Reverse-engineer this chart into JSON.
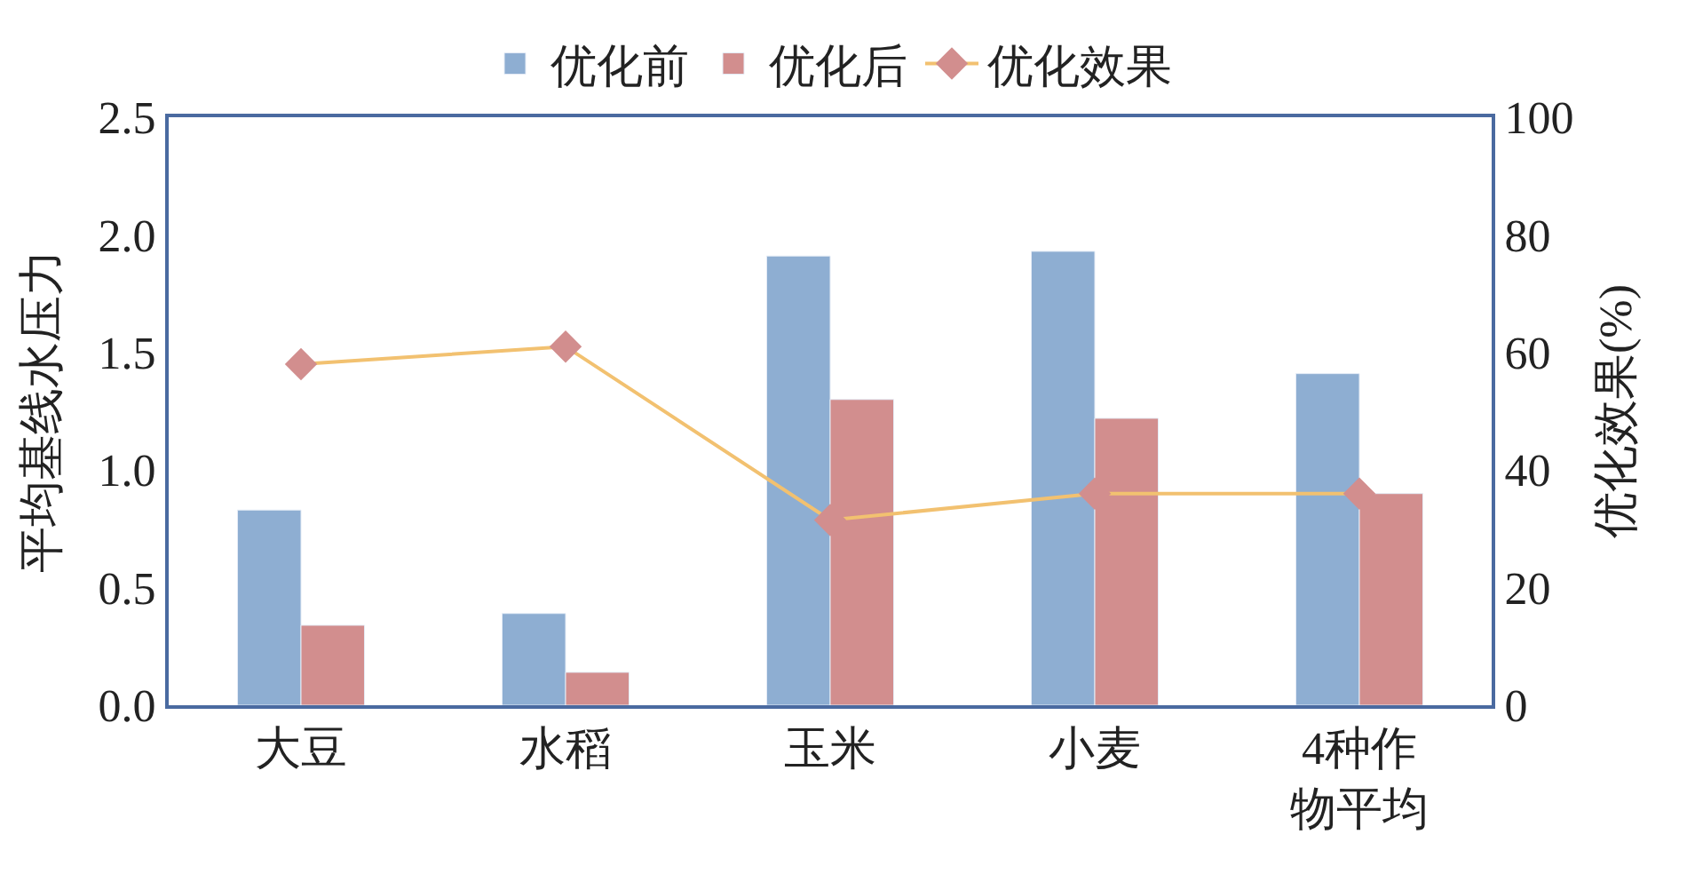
{
  "chart_data": {
    "type": "bar",
    "categories": [
      "大豆",
      "水稻",
      "玉米",
      "小麦",
      "4种作物平均"
    ],
    "ylabel": "平均基线水压力",
    "y2label": "优化效果(%)",
    "ylim": [
      0,
      2.5
    ],
    "yticks": [
      {
        "value": 0,
        "label": "0.0"
      },
      {
        "value": 0.5,
        "label": "0.5"
      },
      {
        "value": 1,
        "label": "1.0"
      },
      {
        "value": 1.5,
        "label": "1.5"
      },
      {
        "value": 2,
        "label": "2.0"
      },
      {
        "value": 2.5,
        "label": "2.5"
      }
    ],
    "y2lim": [
      0,
      100
    ],
    "y2ticks": [
      0,
      20,
      40,
      60,
      80,
      100
    ],
    "legend": "top",
    "series": [
      {
        "name": "优化前",
        "color": "#8eaed2",
        "values": [
          0.83,
          0.39,
          1.91,
          1.93,
          1.41
        ]
      },
      {
        "name": "优化后",
        "color": "#d28e8e",
        "values": [
          0.34,
          0.14,
          1.3,
          1.22,
          0.9
        ]
      },
      {
        "name": "优化效果",
        "type": "line",
        "axis": "y2",
        "color": "#f2c170",
        "marker": "diamond",
        "colors": [
          "#d28e8e",
          "#d28e8e",
          "#d28e8e",
          "#d28e8e",
          "#d28e8e"
        ],
        "values": [
          58,
          61,
          31.5,
          36,
          36
        ]
      }
    ]
  }
}
